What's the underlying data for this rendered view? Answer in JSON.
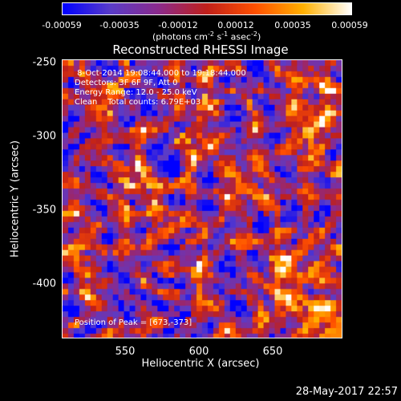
{
  "colorbar": {
    "tick_labels": [
      "-0.00059",
      "-0.00035",
      "-0.00012",
      "0.00012",
      "0.00035",
      "0.00059"
    ],
    "units_prefix": "(photons cm",
    "units_exp1": "-2",
    "units_mid1": " s",
    "units_exp2": "-1",
    "units_mid2": " asec",
    "units_exp3": "-2",
    "units_suffix": ")"
  },
  "title": "Reconstructed RHESSI Image",
  "info": {
    "time_range": " 8-Oct-2014 19:08:44.000 to 19:18:44.000",
    "detectors": "Detectors: 3F 6F 9F, Att 0",
    "energy_range": "Energy Range: 12.0 - 25.0 keV",
    "method": "Clean    Total counts: 6.79E+03",
    "peak": "Position of Peak = [673,-373]"
  },
  "axes": {
    "xlabel": "Heliocentric X (arcsec)",
    "ylabel": "Heliocentric Y (arcsec)",
    "xticks": [
      "550",
      "600",
      "650"
    ],
    "yticks": [
      "-250",
      "-300",
      "-350",
      "-400"
    ]
  },
  "timestamp": "28-May-2017 22:57",
  "colors": {
    "colormap": [
      "#0000ff",
      "#5a3cc8",
      "#8b2a8b",
      "#c0201a",
      "#ff5000",
      "#ffb000",
      "#ffffff"
    ]
  }
}
